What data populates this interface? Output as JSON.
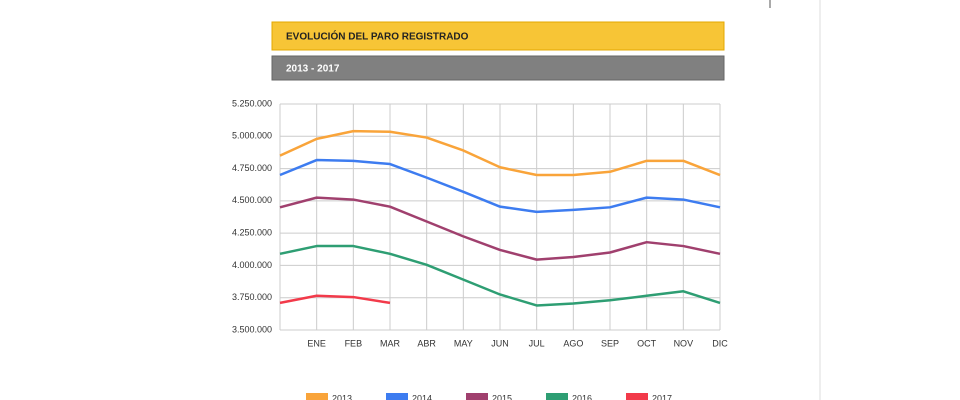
{
  "chart_data": {
    "type": "line",
    "title": "EVOLUCIÓN DEL PARO REGISTRADO",
    "subtitle": "2013 - 2017",
    "categories": [
      null,
      "ENE",
      "FEB",
      "MAR",
      "ABR",
      "MAY",
      "JUN",
      "JUL",
      "AGO",
      "SEP",
      "OCT",
      "NOV",
      "DIC"
    ],
    "ylim": [
      3500000,
      5250000
    ],
    "yticks": [
      {
        "value": 3500000,
        "label": "3.500.000"
      },
      {
        "value": 3750000,
        "label": "3.750.000"
      },
      {
        "value": 4000000,
        "label": "4.000.000"
      },
      {
        "value": 4250000,
        "label": "4.250.000"
      },
      {
        "value": 4500000,
        "label": "4.500.000"
      },
      {
        "value": 4750000,
        "label": "4.750.000"
      },
      {
        "value": 5000000,
        "label": "5.000.000"
      },
      {
        "value": 5250000,
        "label": "5.250.000"
      }
    ],
    "grid": true,
    "series": [
      {
        "name": "2013",
        "color": "#f9a43a",
        "values": [
          4850000,
          4980000,
          5040000,
          5035000,
          4990000,
          4890000,
          4760000,
          4700000,
          4700000,
          4725000,
          4810000,
          4810000,
          4700000
        ]
      },
      {
        "name": "2014",
        "color": "#3d7cf0",
        "values": [
          4700000,
          4816000,
          4810000,
          4785000,
          4680000,
          4570000,
          4455000,
          4415000,
          4430000,
          4450000,
          4525000,
          4510000,
          4450000
        ]
      },
      {
        "name": "2015",
        "color": "#a0406e",
        "values": [
          4450000,
          4525000,
          4510000,
          4455000,
          4340000,
          4225000,
          4120000,
          4045000,
          4065000,
          4100000,
          4180000,
          4150000,
          4090000
        ]
      },
      {
        "name": "2016",
        "color": "#2e9e73",
        "values": [
          4090000,
          4150000,
          4150000,
          4090000,
          4005000,
          3890000,
          3775000,
          3690000,
          3705000,
          3730000,
          3765000,
          3800000,
          3710000
        ]
      },
      {
        "name": "2017",
        "color": "#f23a4a",
        "values": [
          3710000,
          3765000,
          3755000,
          3710000,
          null,
          null,
          null,
          null,
          null,
          null,
          null,
          null,
          null
        ]
      }
    ]
  }
}
